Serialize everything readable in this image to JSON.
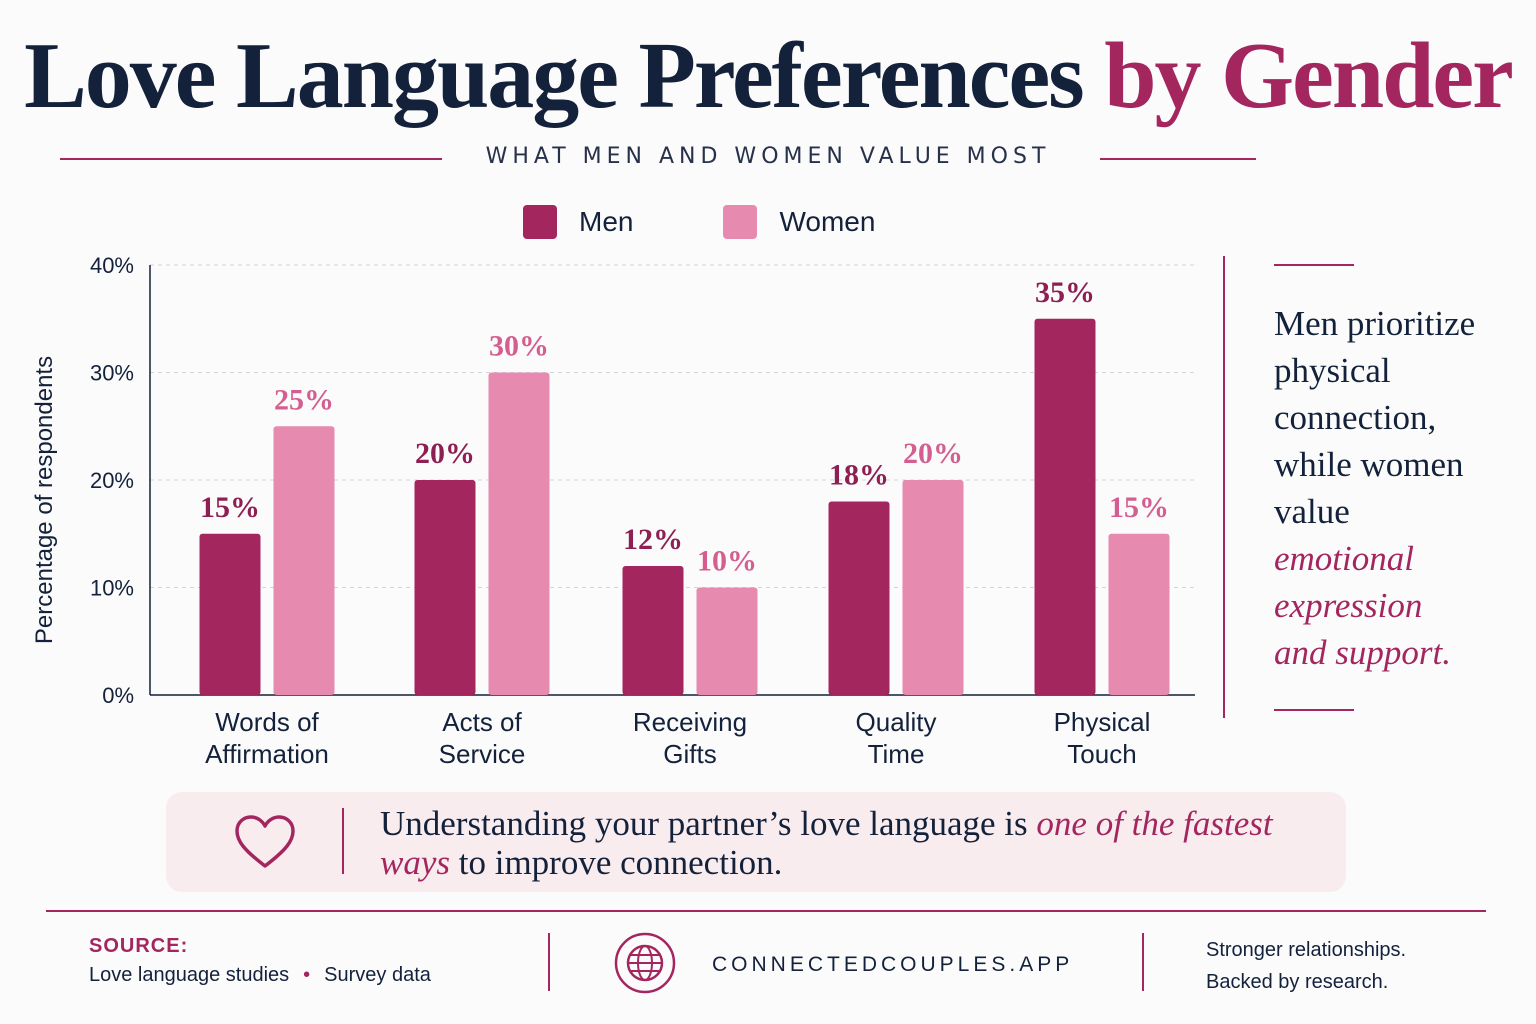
{
  "header": {
    "title_main": "Love Language Preferences",
    "title_accent": "by Gender",
    "subtitle": "WHAT MEN AND WOMEN VALUE MOST"
  },
  "legend": {
    "men": "Men",
    "women": "Women"
  },
  "colors": {
    "men": "#a4265f",
    "women": "#e78ab0",
    "accent": "#a4265f",
    "text": "#13213a"
  },
  "chart_data": {
    "type": "bar",
    "categories": [
      [
        "Words of",
        "Affirmation"
      ],
      [
        "Acts of",
        "Service"
      ],
      [
        "Receiving",
        "Gifts"
      ],
      [
        "Quality",
        "Time"
      ],
      [
        "Physical",
        "Touch"
      ]
    ],
    "series": [
      {
        "name": "Men",
        "values": [
          15,
          20,
          12,
          18,
          35
        ]
      },
      {
        "name": "Women",
        "values": [
          25,
          30,
          10,
          20,
          15
        ]
      }
    ],
    "data_labels": {
      "Men": [
        "15%",
        "20%",
        "12%",
        "18%",
        "35%"
      ],
      "Women": [
        "25%",
        "30%",
        "10%",
        "20%",
        "15%"
      ]
    },
    "ylabel": "Percentage of respondents",
    "ylim": [
      0,
      40
    ],
    "yticks": [
      0,
      10,
      20,
      30,
      40
    ],
    "ytick_labels": [
      "0%",
      "10%",
      "20%",
      "30%",
      "40%"
    ],
    "grid": true,
    "legend_position": "top"
  },
  "aside": {
    "line1": "Men prioritize",
    "line2": "physical",
    "line3": "connection,",
    "line4": "while women",
    "line5": "value",
    "em1": "emotional",
    "em2": "expression",
    "em3": "and support."
  },
  "callout": {
    "icon": "heart-icon",
    "text_before": "Understanding your partner’s love language is ",
    "text_em": "one of the fastest ways",
    "text_after": " to improve connection."
  },
  "footer": {
    "source_label": "SOURCE:",
    "source_item1": "Love language studies",
    "bullet": "•",
    "source_item2": "Survey data",
    "site_icon": "globe-icon",
    "site": "CONNECTEDCOUPLES.APP",
    "tagline1": "Stronger relationships.",
    "tagline2": "Backed by research."
  }
}
